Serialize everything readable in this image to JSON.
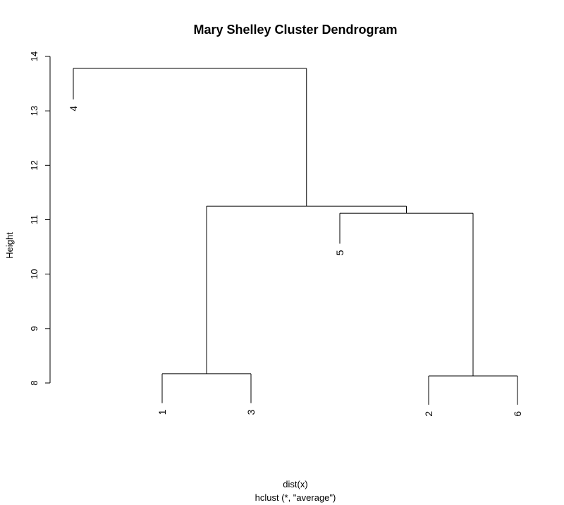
{
  "chart_data": {
    "type": "dendrogram",
    "title": "Mary Shelley Cluster Dendrogram",
    "ylabel": "Height",
    "xlabel": "dist(x)",
    "sublabel": "hclust (*, \"average\")",
    "ylim": [
      8,
      14
    ],
    "yticks": [
      "8",
      "9",
      "10",
      "11",
      "12",
      "13",
      "14"
    ],
    "leaf_order": [
      "4",
      "1",
      "3",
      "5",
      "2",
      "6"
    ],
    "leaves": [
      {
        "label": "1",
        "height": 7.63
      },
      {
        "label": "2",
        "height": 7.6
      },
      {
        "label": "3",
        "height": 7.63
      },
      {
        "label": "4",
        "height": 13.21
      },
      {
        "label": "5",
        "height": 10.56
      },
      {
        "label": "6",
        "height": 7.6
      }
    ],
    "merges": [
      {
        "height": 8.13,
        "members": [
          "2",
          "6"
        ]
      },
      {
        "height": 8.17,
        "members": [
          "1",
          "3"
        ]
      },
      {
        "height": 11.12,
        "members": [
          "5",
          "2",
          "6"
        ]
      },
      {
        "height": 11.25,
        "members": [
          "1",
          "3",
          "5",
          "2",
          "6"
        ]
      },
      {
        "height": 13.78,
        "members": [
          "4",
          "1",
          "3",
          "5",
          "2",
          "6"
        ]
      }
    ]
  }
}
